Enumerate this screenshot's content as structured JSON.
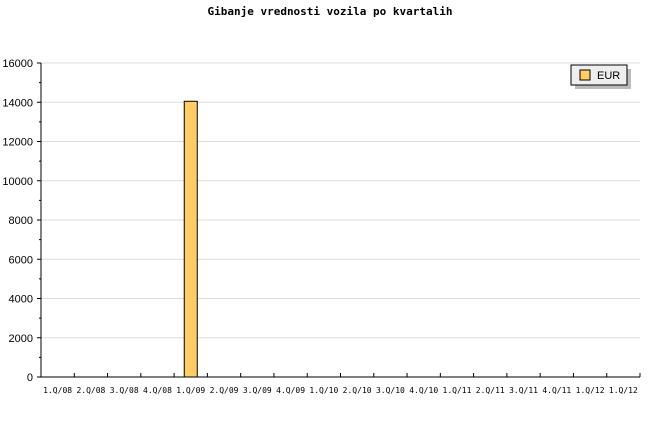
{
  "chart_data": {
    "type": "bar",
    "title": "Gibanje vrednosti vozila po kvartalih",
    "xlabel": "",
    "ylabel": "",
    "categories": [
      "1.Q/08",
      "2.Q/08",
      "3.Q/08",
      "4.Q/08",
      "1.Q/09",
      "2.Q/09",
      "3.Q/09",
      "4.Q/09",
      "1.Q/10",
      "2.Q/10",
      "3.Q/10",
      "4.Q/10",
      "1.Q/11",
      "2.Q/11",
      "3.Q/11",
      "4.Q/11",
      "1.Q/12",
      "1.Q/12"
    ],
    "series": [
      {
        "name": "EUR",
        "color": "#ffcc66",
        "values": [
          0,
          0,
          0,
          0,
          14050,
          0,
          0,
          0,
          0,
          0,
          0,
          0,
          0,
          0,
          0,
          0,
          0,
          0
        ]
      }
    ],
    "ylim": [
      0,
      16000
    ],
    "yticks": [
      0,
      2000,
      4000,
      6000,
      8000,
      10000,
      12000,
      14000,
      16000
    ],
    "grid": true,
    "legend": "top-right"
  }
}
